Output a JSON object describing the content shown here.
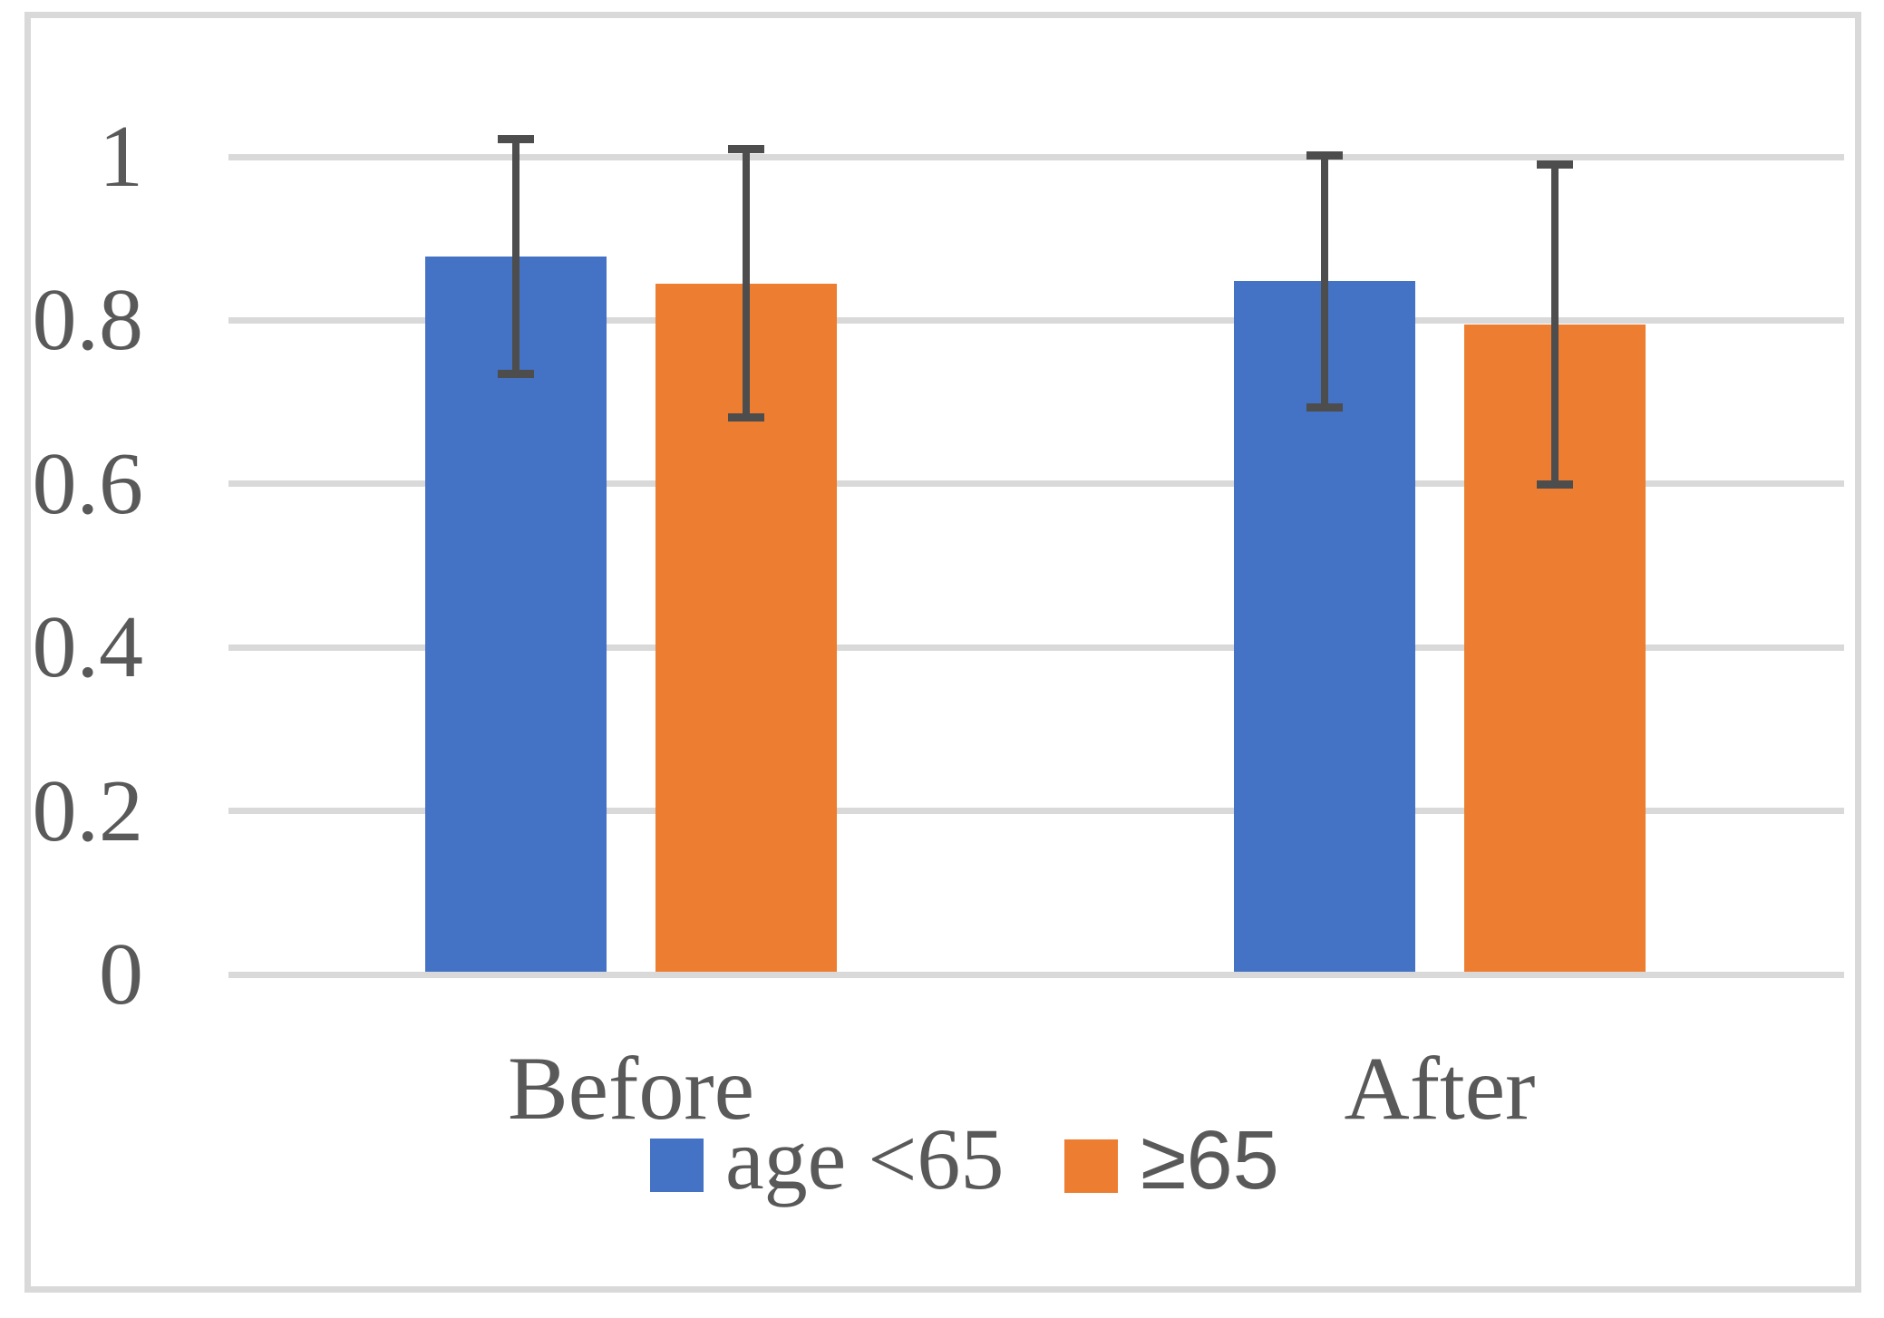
{
  "chart_data": {
    "type": "bar",
    "title": "",
    "xlabel": "",
    "ylabel": "",
    "categories": [
      "Before",
      "After"
    ],
    "series": [
      {
        "name": "age <65",
        "color": "#4472C4",
        "values": [
          0.878,
          0.848
        ],
        "error_bars": [
          0.144,
          0.154
        ]
      },
      {
        "name": "≥65",
        "color": "#ED7D31",
        "values": [
          0.845,
          0.795
        ],
        "error_bars": [
          0.164,
          0.196
        ]
      }
    ],
    "ylim": [
      0,
      1
    ],
    "yticks": [
      0,
      0.2,
      0.4,
      0.6,
      0.8,
      1
    ],
    "ytick_labels": [
      "0",
      "0.2",
      "0.4",
      "0.6",
      "0.8",
      "1"
    ],
    "grid": true,
    "legend_position": "bottom",
    "error_bar_style": "symmetric-caps"
  },
  "legend": {
    "items": [
      {
        "label": "age <65",
        "color": "#4472C4"
      },
      {
        "label": "≥65",
        "color": "#ED7D31"
      }
    ]
  },
  "colors": {
    "background": "#FFFFFF",
    "border": "#D9D9D9",
    "gridline": "#D9D9D9",
    "text": "#595959",
    "error_bar": "#4D4D4D",
    "series_blue": "#4472C4",
    "series_orange": "#ED7D31"
  }
}
